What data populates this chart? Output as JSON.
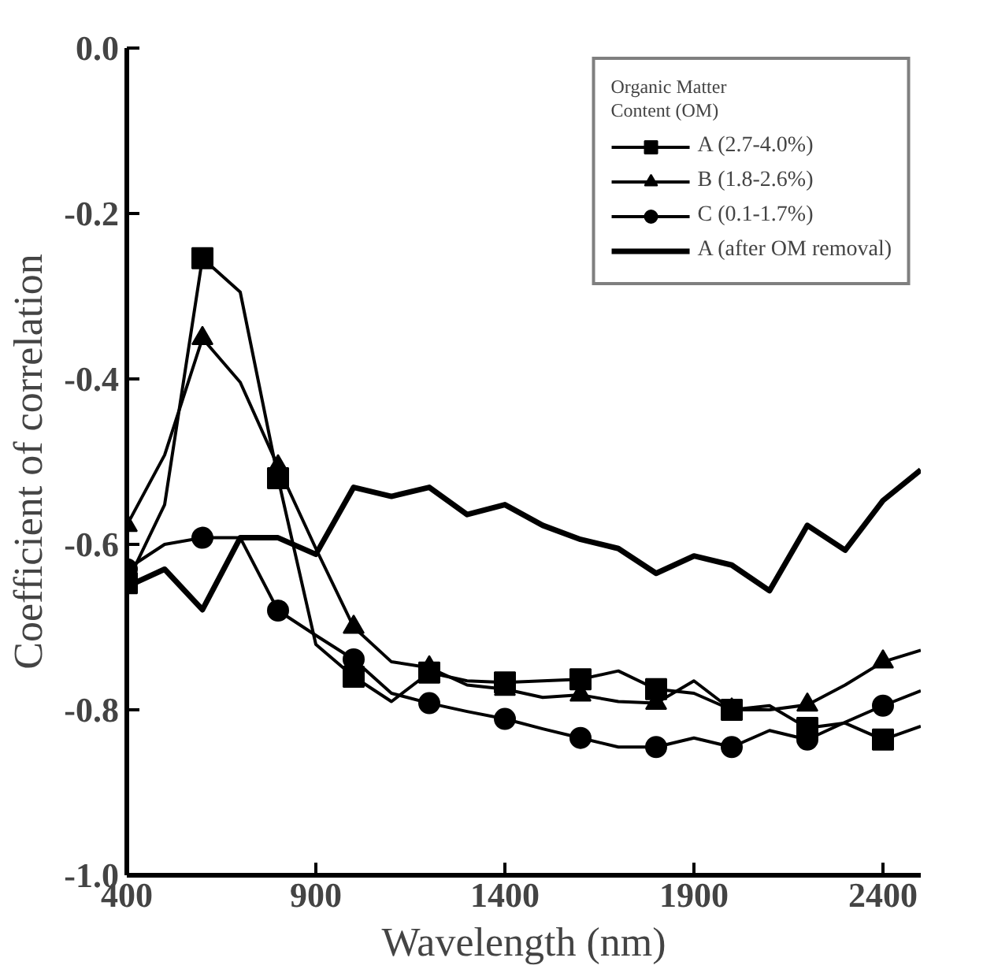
{
  "chart_data": {
    "type": "line",
    "xlabel": "Wavelength (nm)",
    "ylabel": "Coefficient of correlation",
    "legend_title": "Organic Matter\nContent (OM)",
    "legend": "top right",
    "grid": false,
    "line_style": "solid",
    "x": [
      400,
      500,
      600,
      700,
      800,
      900,
      1000,
      1100,
      1200,
      1300,
      1400,
      1500,
      1600,
      1700,
      1800,
      1900,
      2000,
      2100,
      2200,
      2300,
      2400,
      2500
    ],
    "xlim": [
      400,
      2500
    ],
    "xticks": [
      400,
      900,
      1400,
      1900,
      2400
    ],
    "ylim": [
      -1.0,
      0.0
    ],
    "yticks": [
      {
        "value": -1.0,
        "label": "-1.0"
      },
      {
        "value": -0.8,
        "label": "-0.8"
      },
      {
        "value": -0.6,
        "label": "-0.6"
      },
      {
        "value": -0.4,
        "label": "-0.4"
      },
      {
        "value": -0.2,
        "label": "-0.2"
      },
      {
        "value": 0.0,
        "label": "0.0"
      }
    ],
    "series": [
      {
        "name": "A (2.7-4.0%)",
        "color": "#000000",
        "marker": "square",
        "values": [
          -0.647,
          -0.552,
          -0.254,
          -0.295,
          -0.52,
          -0.721,
          -0.76,
          -0.79,
          -0.755,
          -0.765,
          -0.767,
          -0.765,
          -0.763,
          -0.753,
          -0.775,
          -0.78,
          -0.8,
          -0.795,
          -0.822,
          -0.816,
          -0.836,
          -0.82
        ]
      },
      {
        "name": "B (1.8-2.6%)",
        "color": "#000000",
        "marker": "triangle",
        "values": [
          -0.577,
          -0.492,
          -0.351,
          -0.404,
          -0.506,
          -0.605,
          -0.7,
          -0.742,
          -0.749,
          -0.77,
          -0.775,
          -0.785,
          -0.782,
          -0.79,
          -0.792,
          -0.765,
          -0.8,
          -0.8,
          -0.794,
          -0.77,
          -0.742,
          -0.728
        ]
      },
      {
        "name": "C (0.1-1.7%)",
        "color": "#000000",
        "marker": "circle",
        "values": [
          -0.63,
          -0.6,
          -0.592,
          -0.592,
          -0.68,
          -0.71,
          -0.739,
          -0.78,
          -0.792,
          -0.802,
          -0.811,
          -0.823,
          -0.834,
          -0.845,
          -0.845,
          -0.834,
          -0.845,
          -0.825,
          -0.836,
          -0.815,
          -0.795,
          -0.777
        ]
      },
      {
        "name": "A (after OM removal)",
        "color": "#000000",
        "marker": "none",
        "values": [
          -0.651,
          -0.63,
          -0.679,
          -0.592,
          -0.592,
          -0.612,
          -0.531,
          -0.542,
          -0.531,
          -0.564,
          -0.552,
          -0.577,
          -0.594,
          -0.605,
          -0.635,
          -0.614,
          -0.625,
          -0.656,
          -0.577,
          -0.607,
          -0.547,
          -0.51
        ]
      }
    ]
  }
}
